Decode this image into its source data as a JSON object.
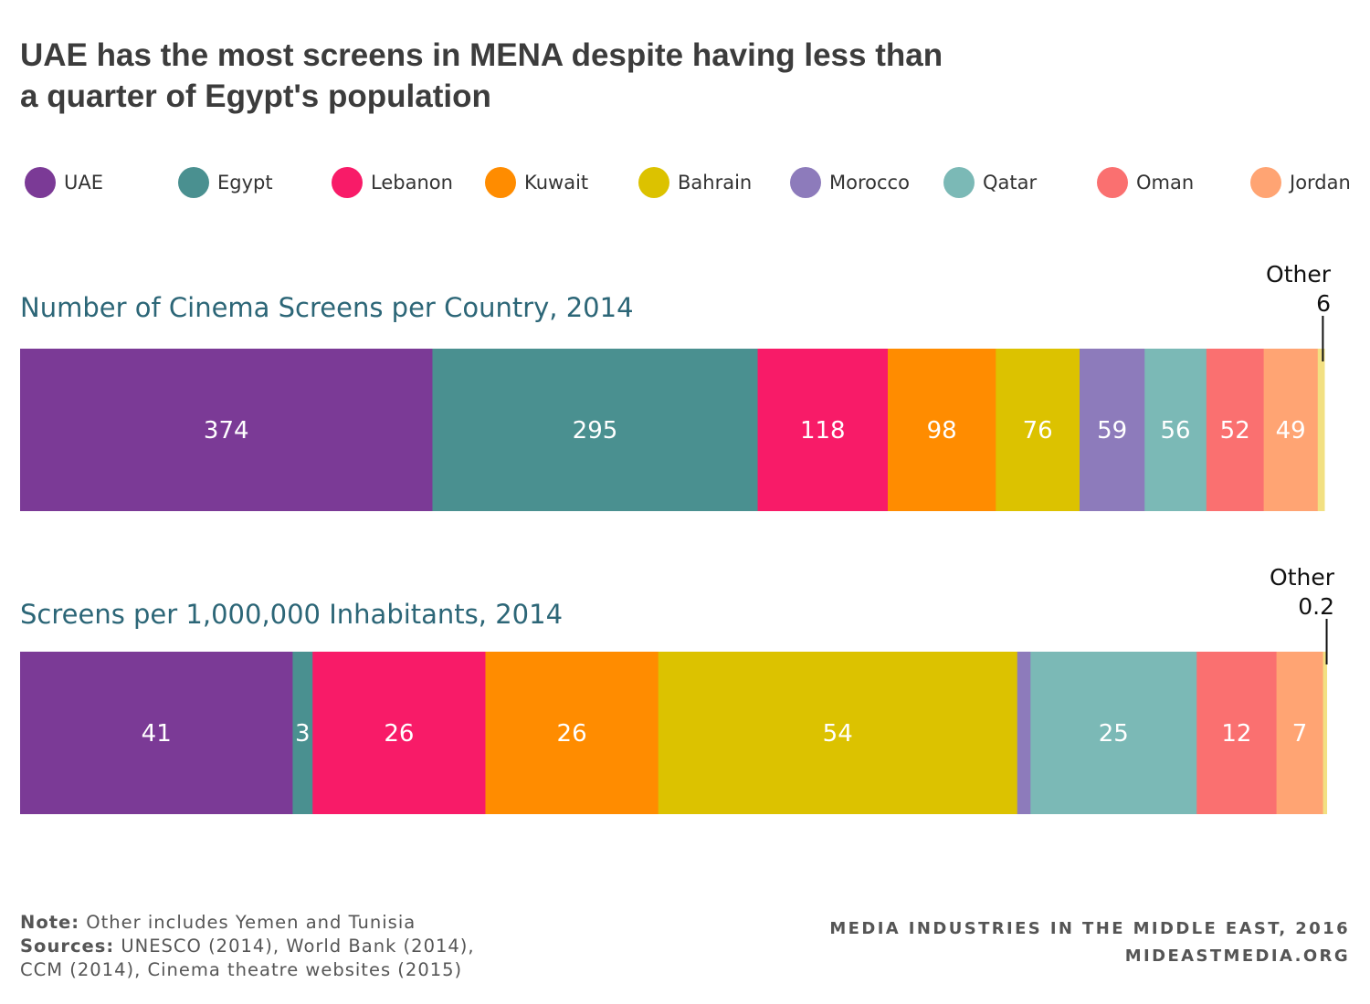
{
  "title": {
    "line1": "UAE has the most screens in MENA despite having less than",
    "line2": "a quarter of Egypt's population"
  },
  "legend": [
    {
      "name": "UAE",
      "color": "#7b3a96"
    },
    {
      "name": "Egypt",
      "color": "#4a9090"
    },
    {
      "name": "Lebanon",
      "color": "#f81b68"
    },
    {
      "name": "Kuwait",
      "color": "#ff8c00"
    },
    {
      "name": "Bahrain",
      "color": "#dcc200"
    },
    {
      "name": "Morocco",
      "color": "#8d7bbb"
    },
    {
      "name": "Qatar",
      "color": "#7bb9b6"
    },
    {
      "name": "Oman",
      "color": "#fa7070"
    },
    {
      "name": "Jordan",
      "color": "#ffa473"
    }
  ],
  "other_color": "#f2e082",
  "chart_data": [
    {
      "type": "bar",
      "stacked": true,
      "orientation": "horizontal",
      "title": "Number of Cinema Screens per Country, 2014",
      "categories": [
        "UAE",
        "Egypt",
        "Lebanon",
        "Kuwait",
        "Bahrain",
        "Morocco",
        "Qatar",
        "Oman",
        "Jordan",
        "Other"
      ],
      "values": [
        374,
        295,
        118,
        98,
        76,
        59,
        56,
        52,
        49,
        6
      ],
      "labels": [
        "374",
        "295",
        "118",
        "98",
        "76",
        "59",
        "56",
        "52",
        "49",
        ""
      ],
      "other_annotation": {
        "name": "Other",
        "value": "6"
      }
    },
    {
      "type": "bar",
      "stacked": true,
      "orientation": "horizontal",
      "title": "Screens per 1,000,000 Inhabitants, 2014",
      "categories": [
        "UAE",
        "Egypt",
        "Lebanon",
        "Kuwait",
        "Bahrain",
        "Morocco",
        "Qatar",
        "Oman",
        "Jordan",
        "Other"
      ],
      "values": [
        41,
        3,
        26,
        26,
        54,
        2,
        25,
        12,
        7,
        0.2
      ],
      "labels": [
        "41",
        "3",
        "26",
        "26",
        "54",
        "",
        "25",
        "12",
        "7",
        ""
      ],
      "other_annotation": {
        "name": "Other",
        "value": "0.2"
      }
    }
  ],
  "footer": {
    "note_label": "Note:",
    "note_text": "Other includes Yemen and Tunisia",
    "sources_label": "Sources:",
    "sources_text": "UNESCO (2014), World Bank (2014),",
    "sources_text2": "CCM (2014), Cinema theatre websites (2015)",
    "publication": "MEDIA INDUSTRIES IN THE MIDDLE EAST, 2016",
    "website": "MIDEASTMEDIA.ORG"
  }
}
